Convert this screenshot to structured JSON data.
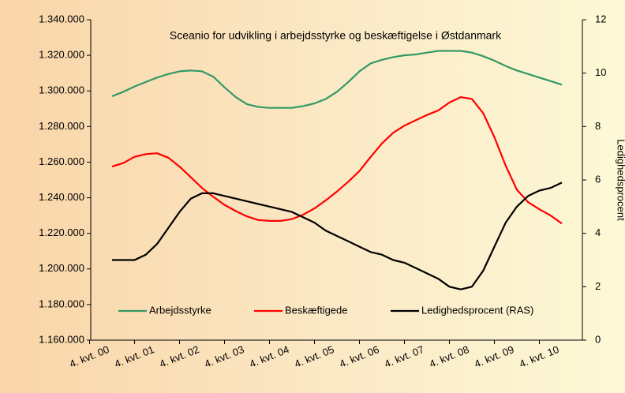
{
  "chart_data": {
    "type": "line",
    "title": "Sceanio for udvikling i arbejdsstyrke og beskæftigelse i Østdanmark",
    "y2label": "Ledighedsprocent",
    "categories": [
      "4. kvt. 00",
      null,
      null,
      null,
      "4. kvt. 01",
      null,
      null,
      null,
      "4. kvt. 02",
      null,
      null,
      null,
      "4. kvt. 03",
      null,
      null,
      null,
      "4. kvt. 04",
      null,
      null,
      null,
      "4. kvt. 05",
      null,
      null,
      null,
      "4. kvt. 06",
      null,
      null,
      null,
      "4. kvt. 07",
      null,
      null,
      null,
      "4. kvt. 08",
      null,
      null,
      null,
      "4. kvt. 09",
      null,
      null,
      null,
      "4. kvt. 10"
    ],
    "ylim": [
      1160000,
      1340000
    ],
    "yticks": [
      {
        "value": 1160000,
        "label": "1.160.000"
      },
      {
        "value": 1180000,
        "label": "1.180.000"
      },
      {
        "value": 1200000,
        "label": "1.200.000"
      },
      {
        "value": 1220000,
        "label": "1.220.000"
      },
      {
        "value": 1240000,
        "label": "1.240.000"
      },
      {
        "value": 1260000,
        "label": "1.260.000"
      },
      {
        "value": 1280000,
        "label": "1.280.000"
      },
      {
        "value": 1300000,
        "label": "1.300.000"
      },
      {
        "value": 1320000,
        "label": "1.320.000"
      },
      {
        "value": 1340000,
        "label": "1.340.000"
      }
    ],
    "y2lim": [
      0,
      12
    ],
    "y2ticks": [
      0,
      2,
      4,
      6,
      8,
      10,
      12
    ],
    "legend": "bottom",
    "series": [
      {
        "name": "Arbejdsstyrke",
        "color": "#339966",
        "values": [
          1297000,
          1299500,
          1302500,
          1305000,
          1307500,
          1309500,
          1311000,
          1311500,
          1311000,
          1308000,
          1302000,
          1296500,
          1292500,
          1291000,
          1290500,
          1290500,
          1290500,
          1291500,
          1293000,
          1295500,
          1299500,
          1305000,
          1311000,
          1315500,
          1317500,
          1319000,
          1320000,
          1320500,
          1321500,
          1322500,
          1322500,
          1322500,
          1321500,
          1319500,
          1317000,
          1314000,
          1311500,
          1309500,
          1307500,
          1305500,
          1303500
        ]
      },
      {
        "name": "Beskæftigede",
        "color": "#ff0000",
        "values": [
          1257500,
          1259500,
          1263000,
          1264500,
          1265000,
          1262500,
          1257500,
          1251500,
          1245500,
          1240500,
          1236000,
          1232500,
          1229500,
          1227500,
          1227000,
          1227000,
          1228000,
          1230500,
          1234000,
          1238500,
          1243500,
          1249000,
          1255000,
          1263000,
          1270500,
          1276500,
          1280500,
          1283500,
          1286500,
          1289000,
          1293500,
          1296500,
          1295500,
          1287500,
          1274000,
          1258000,
          1244500,
          1237500,
          1233500,
          1230000,
          1225500
        ]
      },
      {
        "name": "Ledighedsprocent (RAS)",
        "color": "#000000",
        "axis": "y2",
        "values": [
          3.0,
          3.0,
          3.0,
          3.2,
          3.6,
          4.2,
          4.8,
          5.3,
          5.5,
          5.5,
          5.4,
          5.3,
          5.2,
          5.1,
          5.0,
          4.9,
          4.8,
          4.6,
          4.4,
          4.1,
          3.9,
          3.7,
          3.5,
          3.3,
          3.2,
          3.0,
          2.9,
          2.7,
          2.5,
          2.3,
          2.0,
          1.9,
          2.0,
          2.6,
          3.5,
          4.4,
          5.0,
          5.4,
          5.6,
          5.7,
          5.9
        ]
      }
    ]
  }
}
